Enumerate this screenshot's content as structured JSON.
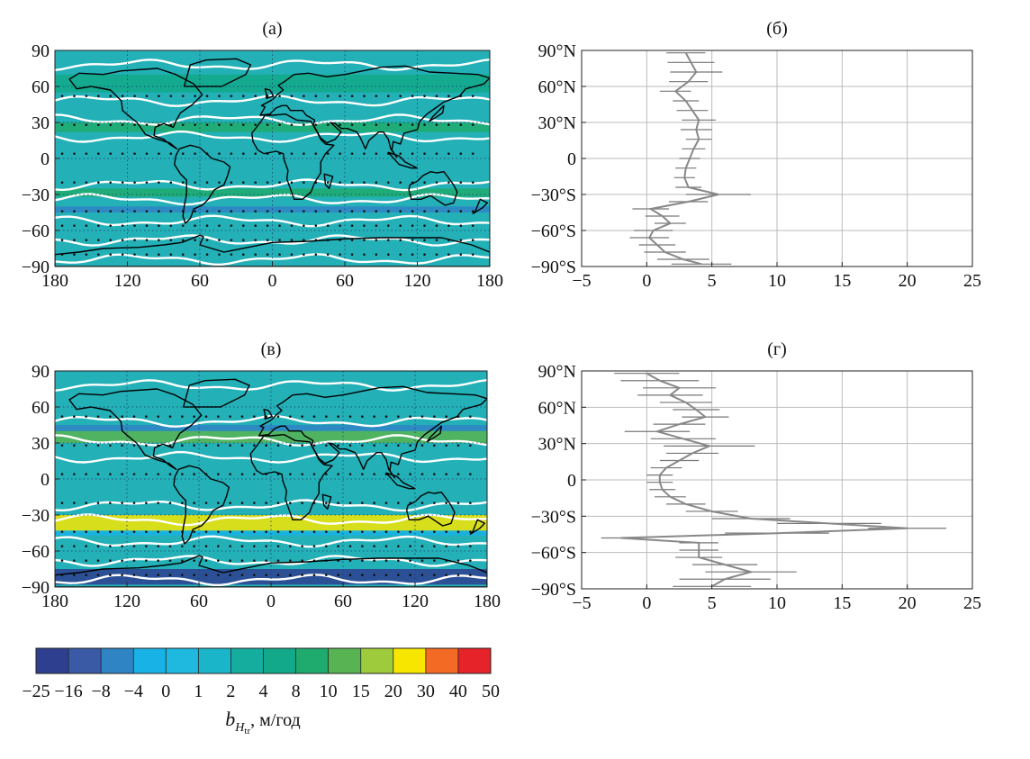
{
  "colors": {
    "scale": [
      "#2e3f8f",
      "#3a5aa6",
      "#2f84c4",
      "#19b2e6",
      "#1fb8df",
      "#1bb5c9",
      "#14ad9e",
      "#12a98a",
      "#1fab6e",
      "#58b453",
      "#9ecb3c",
      "#f7e600",
      "#f26a24",
      "#e52328"
    ],
    "map_background": "#23b0b7",
    "contour": "#ffffff",
    "coast": "#000000",
    "profile_line": "#888888",
    "grid": "#bbbbbb"
  },
  "chart_data": [
    {
      "id": "a",
      "type": "heatmap",
      "title": "(а)",
      "x_ticks": [
        "180",
        "120",
        "60",
        "0",
        "60",
        "120",
        "180"
      ],
      "y_ticks": [
        "90",
        "60",
        "30",
        "0",
        "−30",
        "−60",
        "−90"
      ],
      "xlim": [
        -180,
        180
      ],
      "ylim": [
        -90,
        90
      ],
      "bands": [
        {
          "lat_range": [
            55,
            70
          ],
          "level": 7,
          "color_key": "strong"
        },
        {
          "lat_range": [
            22,
            30
          ],
          "level": 8,
          "color_key": "strong"
        },
        {
          "lat_range": [
            -32,
            -25
          ],
          "level": 8,
          "color_key": "strong"
        },
        {
          "lat_range": [
            -45,
            -40
          ],
          "level": 2,
          "color_key": "weak"
        }
      ]
    },
    {
      "id": "b",
      "type": "line",
      "title": "(б)",
      "x_ticks": [
        "−5",
        "0",
        "5",
        "10",
        "15",
        "20",
        "25"
      ],
      "y_ticks": [
        "90°N",
        "60°N",
        "30°N",
        "0",
        "−30°S",
        "−60°S",
        "−90°S"
      ],
      "xlim": [
        -5,
        25
      ],
      "ylim": [
        -90,
        90
      ],
      "lat": [
        88,
        80,
        72,
        64,
        56,
        48,
        40,
        32,
        24,
        16,
        8,
        0,
        -8,
        -16,
        -24,
        -30,
        -36,
        -42,
        -48,
        -54,
        -60,
        -66,
        -72,
        -78,
        -84,
        -88
      ],
      "mean": [
        3.0,
        3.4,
        3.8,
        3.2,
        2.2,
        3.0,
        3.5,
        4.0,
        3.8,
        4.0,
        3.6,
        3.3,
        3.0,
        2.9,
        3.2,
        5.5,
        3.2,
        0.3,
        1.2,
        1.8,
        0.5,
        0.2,
        0.8,
        1.4,
        2.8,
        4.2
      ],
      "err": [
        1.5,
        1.8,
        2.0,
        1.5,
        1.2,
        1.0,
        1.2,
        1.3,
        1.2,
        1.0,
        0.9,
        0.8,
        0.8,
        0.8,
        1.0,
        2.5,
        1.5,
        1.4,
        1.3,
        1.2,
        1.5,
        1.5,
        1.4,
        1.6,
        2.0,
        2.3
      ]
    },
    {
      "id": "c",
      "type": "heatmap",
      "title": "(в)",
      "x_ticks": [
        "180",
        "120",
        "60",
        "0",
        "60",
        "120",
        "180"
      ],
      "y_ticks": [
        "90",
        "60",
        "30",
        "0",
        "−30",
        "−60",
        "−90"
      ],
      "xlim": [
        -180,
        180
      ],
      "ylim": [
        -90,
        90
      ],
      "bands": [
        {
          "lat_range": [
            30,
            40
          ],
          "level": 9,
          "color_key": "strong"
        },
        {
          "lat_range": [
            40,
            45
          ],
          "level": 2,
          "color_key": "weak"
        },
        {
          "lat_range": [
            -43,
            -30
          ],
          "level": 11,
          "color_key": "strong"
        },
        {
          "lat_range": [
            -47,
            -43
          ],
          "level": 3,
          "color_key": "weak"
        },
        {
          "lat_range": [
            -88,
            -75
          ],
          "level": 0,
          "color_key": "weak"
        }
      ]
    },
    {
      "id": "d",
      "type": "line",
      "title": "(г)",
      "x_ticks": [
        "−5",
        "0",
        "5",
        "10",
        "15",
        "20",
        "25"
      ],
      "y_ticks": [
        "90°N",
        "60°N",
        "30°N",
        "0",
        "−30°S",
        "−60°S",
        "−90°S"
      ],
      "xlim": [
        -5,
        25
      ],
      "ylim": [
        -90,
        90
      ],
      "lat": [
        88,
        82,
        76,
        70,
        64,
        58,
        52,
        46,
        40,
        34,
        28,
        22,
        16,
        10,
        4,
        -2,
        -8,
        -14,
        -20,
        -26,
        -32,
        -36,
        -40,
        -44,
        -48,
        -52,
        -58,
        -64,
        -70,
        -76,
        -82,
        -88
      ],
      "mean": [
        0.0,
        1.0,
        2.5,
        1.8,
        3.0,
        3.8,
        4.5,
        2.5,
        0.8,
        2.8,
        4.8,
        3.5,
        2.5,
        1.5,
        1.0,
        1.0,
        1.2,
        1.8,
        3.0,
        5.0,
        8.0,
        14.0,
        20.0,
        10.0,
        -2.0,
        4.0,
        4.0,
        4.0,
        6.0,
        8.0,
        6.0,
        5.0
      ],
      "err": [
        2.5,
        3.0,
        2.8,
        2.5,
        2.0,
        1.8,
        1.8,
        2.0,
        2.5,
        2.5,
        3.5,
        2.0,
        1.5,
        1.2,
        1.0,
        1.0,
        1.0,
        1.2,
        1.5,
        2.0,
        3.0,
        4.0,
        3.0,
        4.0,
        1.5,
        1.5,
        1.5,
        1.8,
        2.5,
        3.5,
        3.5,
        3.0
      ]
    }
  ],
  "colorbar": {
    "tick_labels": [
      "−25",
      "−16",
      "−8",
      "−4",
      "0",
      "1",
      "2",
      "4",
      "8",
      "10",
      "15",
      "20",
      "30",
      "40",
      "50"
    ],
    "label_main": "b",
    "label_sub": "H",
    "label_subsub": "tr",
    "label_rest": ", м/год"
  }
}
